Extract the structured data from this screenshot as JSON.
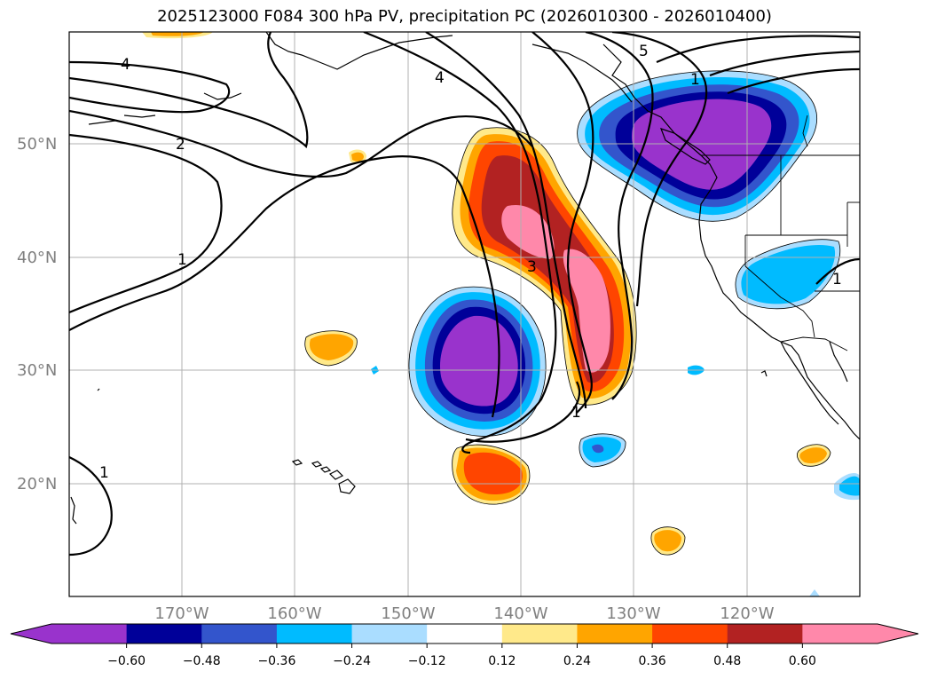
{
  "title": "2025123000 F084 300 hPa PV, precipitation PC (2026010300 - 2026010400)",
  "map": {
    "lat_labels": [
      "50°N",
      "40°N",
      "30°N",
      "20°N"
    ],
    "lon_labels": [
      "170°W",
      "160°W",
      "150°W",
      "140°W",
      "130°W",
      "120°W"
    ],
    "contour_labels": [
      "4",
      "2",
      "1",
      "4",
      "5",
      "1",
      "3",
      "1",
      "1",
      "1"
    ]
  },
  "colorbar": {
    "colors": [
      "#9933cc",
      "#000099",
      "#3355cc",
      "#00bbff",
      "#aaddff",
      "#ffffff",
      "#ffe98a",
      "#ffa500",
      "#ff4500",
      "#b22222",
      "#ff88aa"
    ],
    "under_color": "#9933cc",
    "over_color": "#ff88aa",
    "tick_labels": [
      "−0.60",
      "−0.48",
      "−0.36",
      "−0.24",
      "−0.12",
      "0.12",
      "0.24",
      "0.36",
      "0.48",
      "0.60"
    ]
  }
}
